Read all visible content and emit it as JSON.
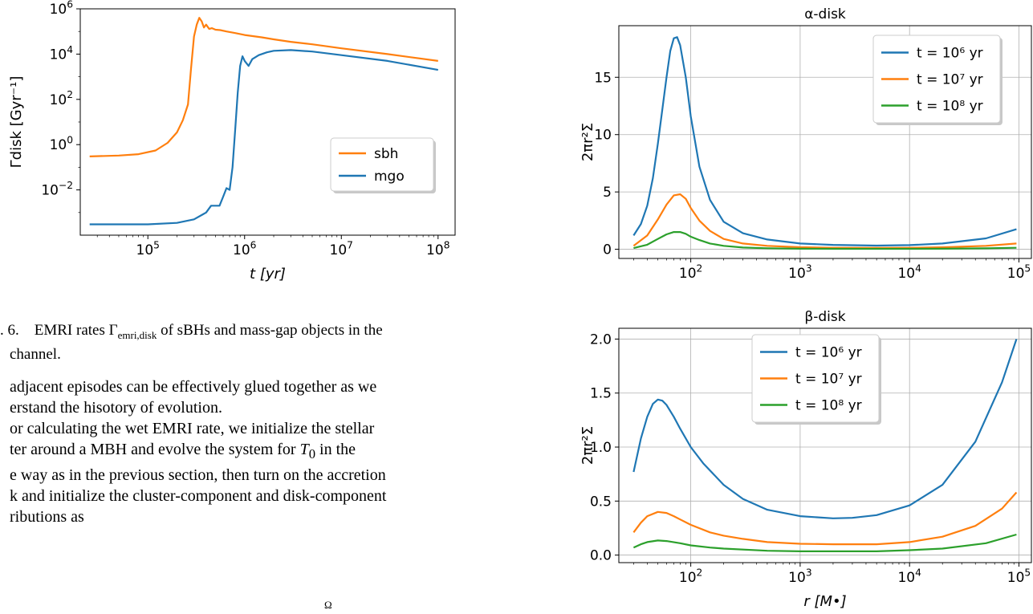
{
  "figure6": {
    "caption_prefix": ". 6.",
    "caption_text_1": "EMRI rates Γ",
    "caption_sub": "emri,disk",
    "caption_text_2": " of sBHs and mass-gap objects in the",
    "caption_line2": "channel."
  },
  "body": {
    "line1": "adjacent episodes can be effectively glued together as we",
    "line2": "erstand the hisotory of evolution.",
    "line3": "or calculating the wet EMRI rate, we initialize the stellar",
    "line4a": "ter around a MBH and evolve the system for ",
    "line4var": "T",
    "line4sub": "0",
    "line4b": " in the",
    "line5": "e way as in the previous section, then turn on the accretion",
    "line6": "k and initialize the cluster-component and disk-component",
    "line7": "ributions as",
    "trailing_symbol": "Ω"
  },
  "chart_data": [
    {
      "type": "line",
      "title": "",
      "xlabel": "t [yr]",
      "ylabel": "Γdisk [Gyr⁻¹]",
      "xscale": "log",
      "yscale": "log",
      "xlim": [
        20000,
        150000000
      ],
      "ylim": [
        0.0001,
        1000000
      ],
      "xticks": [
        {
          "v": 100000,
          "b": "10",
          "e": "5"
        },
        {
          "v": 1000000,
          "b": "10",
          "e": "6"
        },
        {
          "v": 10000000,
          "b": "10",
          "e": "7"
        },
        {
          "v": 100000000,
          "b": "10",
          "e": "8"
        }
      ],
      "yticks": [
        {
          "v": 0.01,
          "b": "10",
          "e": "−2"
        },
        {
          "v": 1,
          "b": "10",
          "e": "0"
        },
        {
          "v": 100,
          "b": "10",
          "e": "2"
        },
        {
          "v": 10000,
          "b": "10",
          "e": "4"
        },
        {
          "v": 1000000,
          "b": "10",
          "e": "6"
        }
      ],
      "grid": false,
      "legend": "center-right",
      "series": [
        {
          "name": "sbh",
          "color": "#ff7f0e",
          "x": [
            25000,
            50000,
            80000,
            120000,
            160000,
            200000,
            230000,
            260000,
            280000,
            300000,
            320000,
            340000,
            360000,
            380000,
            400000,
            430000,
            460000,
            500000,
            560000,
            650000,
            800000,
            1000000,
            1500000,
            2000000,
            3000000,
            5000000,
            10000000,
            30000000,
            100000000
          ],
          "y": [
            0.3,
            0.33,
            0.38,
            0.55,
            1.2,
            3.5,
            12,
            60,
            2500,
            60000,
            200000,
            400000,
            280000,
            150000,
            200000,
            130000,
            140000,
            120000,
            115000,
            100000,
            85000,
            70000,
            55000,
            45000,
            35000,
            27000,
            18000,
            10000,
            5000
          ]
        },
        {
          "name": "mgo",
          "color": "#1f77b4",
          "x": [
            25000,
            50000,
            100000,
            200000,
            300000,
            400000,
            450000,
            500000,
            550000,
            600000,
            650000,
            700000,
            750000,
            800000,
            850000,
            900000,
            950000,
            1000000,
            1100000,
            1200000,
            1400000,
            1700000,
            2000000,
            3000000,
            5000000,
            10000000,
            30000000,
            100000000
          ],
          "y": [
            0.0003,
            0.0003,
            0.0003,
            0.00035,
            0.0005,
            0.001,
            0.002,
            0.002,
            0.002,
            0.005,
            0.012,
            0.01,
            0.1,
            5,
            200,
            3000,
            8000,
            5000,
            3000,
            6000,
            9000,
            12000,
            14000,
            15000,
            13000,
            9000,
            5000,
            2000
          ]
        }
      ]
    },
    {
      "type": "line",
      "title": "α-disk",
      "xlabel": "",
      "ylabel": "2πr²Σ",
      "xscale": "log",
      "xlim": [
        22,
        130000
      ],
      "ylim": [
        -0.8,
        19.5
      ],
      "xticks": [
        {
          "v": 100,
          "b": "10",
          "e": "2"
        },
        {
          "v": 1000,
          "b": "10",
          "e": "3"
        },
        {
          "v": 10000,
          "b": "10",
          "e": "4"
        },
        {
          "v": 100000,
          "b": "10",
          "e": "5"
        }
      ],
      "yticks": [
        {
          "v": 0,
          "t": "0"
        },
        {
          "v": 5,
          "t": "5"
        },
        {
          "v": 10,
          "t": "10"
        },
        {
          "v": 15,
          "t": "15"
        }
      ],
      "grid": true,
      "legend": "top-right",
      "series": [
        {
          "name": "t = 10⁶ yr",
          "color": "#1f77b4",
          "x": [
            30,
            35,
            40,
            45,
            50,
            55,
            60,
            65,
            70,
            75,
            80,
            90,
            100,
            120,
            150,
            200,
            300,
            500,
            1000,
            2000,
            5000,
            10000,
            20000,
            50000,
            95000
          ],
          "y": [
            1.2,
            2.2,
            3.8,
            6.2,
            9.2,
            12.2,
            15.0,
            17.3,
            18.4,
            18.5,
            17.8,
            15.0,
            11.6,
            7.2,
            4.3,
            2.4,
            1.4,
            0.85,
            0.5,
            0.38,
            0.32,
            0.36,
            0.5,
            0.95,
            1.75
          ]
        },
        {
          "name": "t = 10⁷ yr",
          "color": "#ff7f0e",
          "x": [
            30,
            40,
            50,
            60,
            70,
            80,
            90,
            100,
            120,
            150,
            200,
            300,
            500,
            1000,
            2000,
            5000,
            10000,
            20000,
            50000,
            95000
          ],
          "y": [
            0.3,
            1.2,
            2.6,
            3.9,
            4.7,
            4.8,
            4.4,
            3.6,
            2.5,
            1.6,
            0.9,
            0.5,
            0.3,
            0.18,
            0.13,
            0.12,
            0.13,
            0.17,
            0.3,
            0.5
          ]
        },
        {
          "name": "t = 10⁸ yr",
          "color": "#2ca02c",
          "x": [
            30,
            40,
            50,
            60,
            70,
            80,
            90,
            100,
            120,
            150,
            200,
            300,
            500,
            1000,
            2000,
            5000,
            10000,
            20000,
            50000,
            95000
          ],
          "y": [
            0.1,
            0.4,
            0.9,
            1.3,
            1.5,
            1.5,
            1.35,
            1.1,
            0.8,
            0.5,
            0.3,
            0.15,
            0.09,
            0.05,
            0.04,
            0.04,
            0.04,
            0.05,
            0.08,
            0.13
          ]
        }
      ]
    },
    {
      "type": "line",
      "title": "β-disk",
      "xlabel": "r [M•]",
      "ylabel": "2πr²Σ",
      "xscale": "log",
      "xlim": [
        22,
        130000
      ],
      "ylim": [
        -0.07,
        2.1
      ],
      "xticks": [
        {
          "v": 100,
          "b": "10",
          "e": "2"
        },
        {
          "v": 1000,
          "b": "10",
          "e": "3"
        },
        {
          "v": 10000,
          "b": "10",
          "e": "4"
        },
        {
          "v": 100000,
          "b": "10",
          "e": "5"
        }
      ],
      "yticks": [
        {
          "v": 0,
          "t": "0.0"
        },
        {
          "v": 0.5,
          "t": "0.5"
        },
        {
          "v": 1.0,
          "t": "1.0"
        },
        {
          "v": 1.5,
          "t": "1.5"
        },
        {
          "v": 2.0,
          "t": "2.0"
        }
      ],
      "grid": true,
      "legend": "top-center",
      "series": [
        {
          "name": "t = 10⁶ yr",
          "color": "#1f77b4",
          "x": [
            30,
            35,
            40,
            45,
            50,
            55,
            60,
            70,
            80,
            100,
            130,
            200,
            300,
            500,
            1000,
            2000,
            3000,
            5000,
            10000,
            20000,
            40000,
            70000,
            95000
          ],
          "y": [
            0.77,
            1.08,
            1.28,
            1.4,
            1.44,
            1.43,
            1.39,
            1.28,
            1.17,
            1.0,
            0.85,
            0.65,
            0.52,
            0.42,
            0.36,
            0.34,
            0.345,
            0.37,
            0.46,
            0.65,
            1.05,
            1.6,
            2.0
          ]
        },
        {
          "name": "t = 10⁷ yr",
          "color": "#ff7f0e",
          "x": [
            30,
            35,
            40,
            50,
            60,
            70,
            80,
            100,
            150,
            200,
            300,
            500,
            1000,
            2000,
            5000,
            10000,
            20000,
            40000,
            70000,
            95000
          ],
          "y": [
            0.21,
            0.3,
            0.36,
            0.4,
            0.39,
            0.36,
            0.33,
            0.28,
            0.21,
            0.18,
            0.15,
            0.12,
            0.105,
            0.1,
            0.1,
            0.12,
            0.17,
            0.27,
            0.43,
            0.58
          ]
        },
        {
          "name": "t = 10⁸ yr",
          "color": "#2ca02c",
          "x": [
            30,
            35,
            40,
            50,
            60,
            80,
            100,
            150,
            200,
            500,
            1000,
            2000,
            5000,
            10000,
            20000,
            50000,
            95000
          ],
          "y": [
            0.07,
            0.1,
            0.12,
            0.135,
            0.13,
            0.11,
            0.09,
            0.07,
            0.06,
            0.04,
            0.035,
            0.035,
            0.035,
            0.045,
            0.06,
            0.11,
            0.19
          ]
        }
      ]
    }
  ]
}
